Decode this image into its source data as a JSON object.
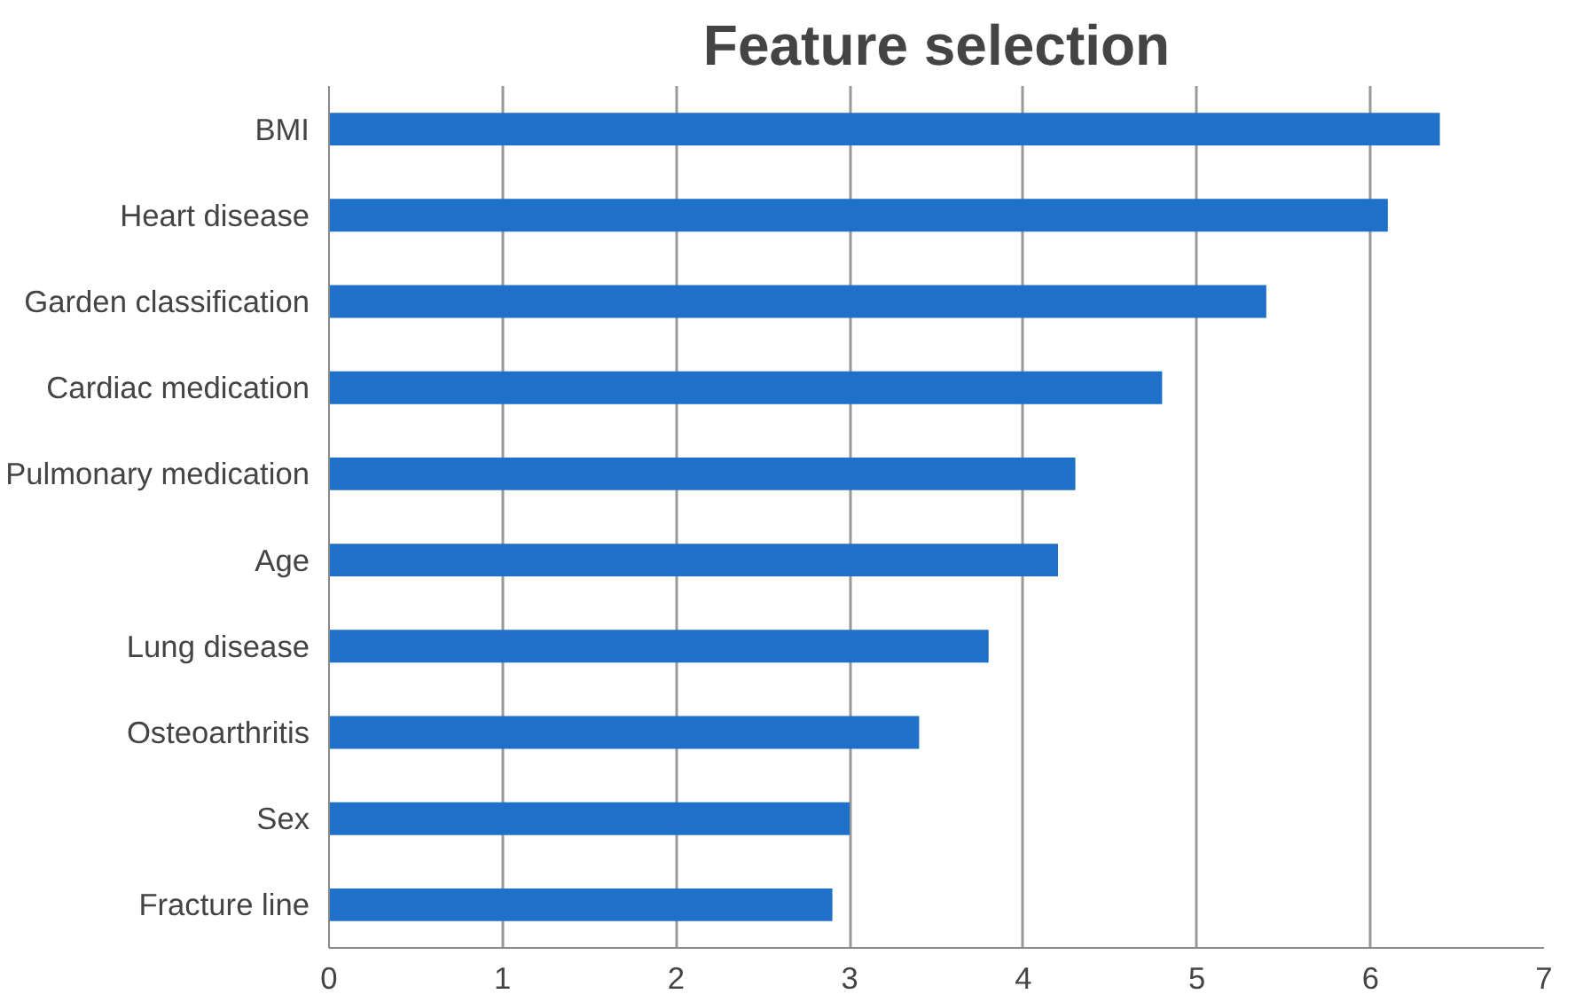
{
  "chart_data": {
    "type": "bar",
    "orientation": "horizontal",
    "title": "Feature selection",
    "categories": [
      "BMI",
      "Heart disease",
      "Garden classification",
      "Cardiac medication",
      "Pulmonary medication",
      "Age",
      "Lung disease",
      "Osteoarthritis",
      "Sex",
      "Fracture line"
    ],
    "values": [
      6.4,
      6.1,
      5.4,
      4.8,
      4.3,
      4.2,
      3.8,
      3.4,
      3.0,
      2.9
    ],
    "color": "#1f70c8",
    "xlim": [
      0,
      7
    ],
    "xticks": [
      0,
      1,
      2,
      3,
      4,
      5,
      6,
      7
    ],
    "grid": "x"
  }
}
